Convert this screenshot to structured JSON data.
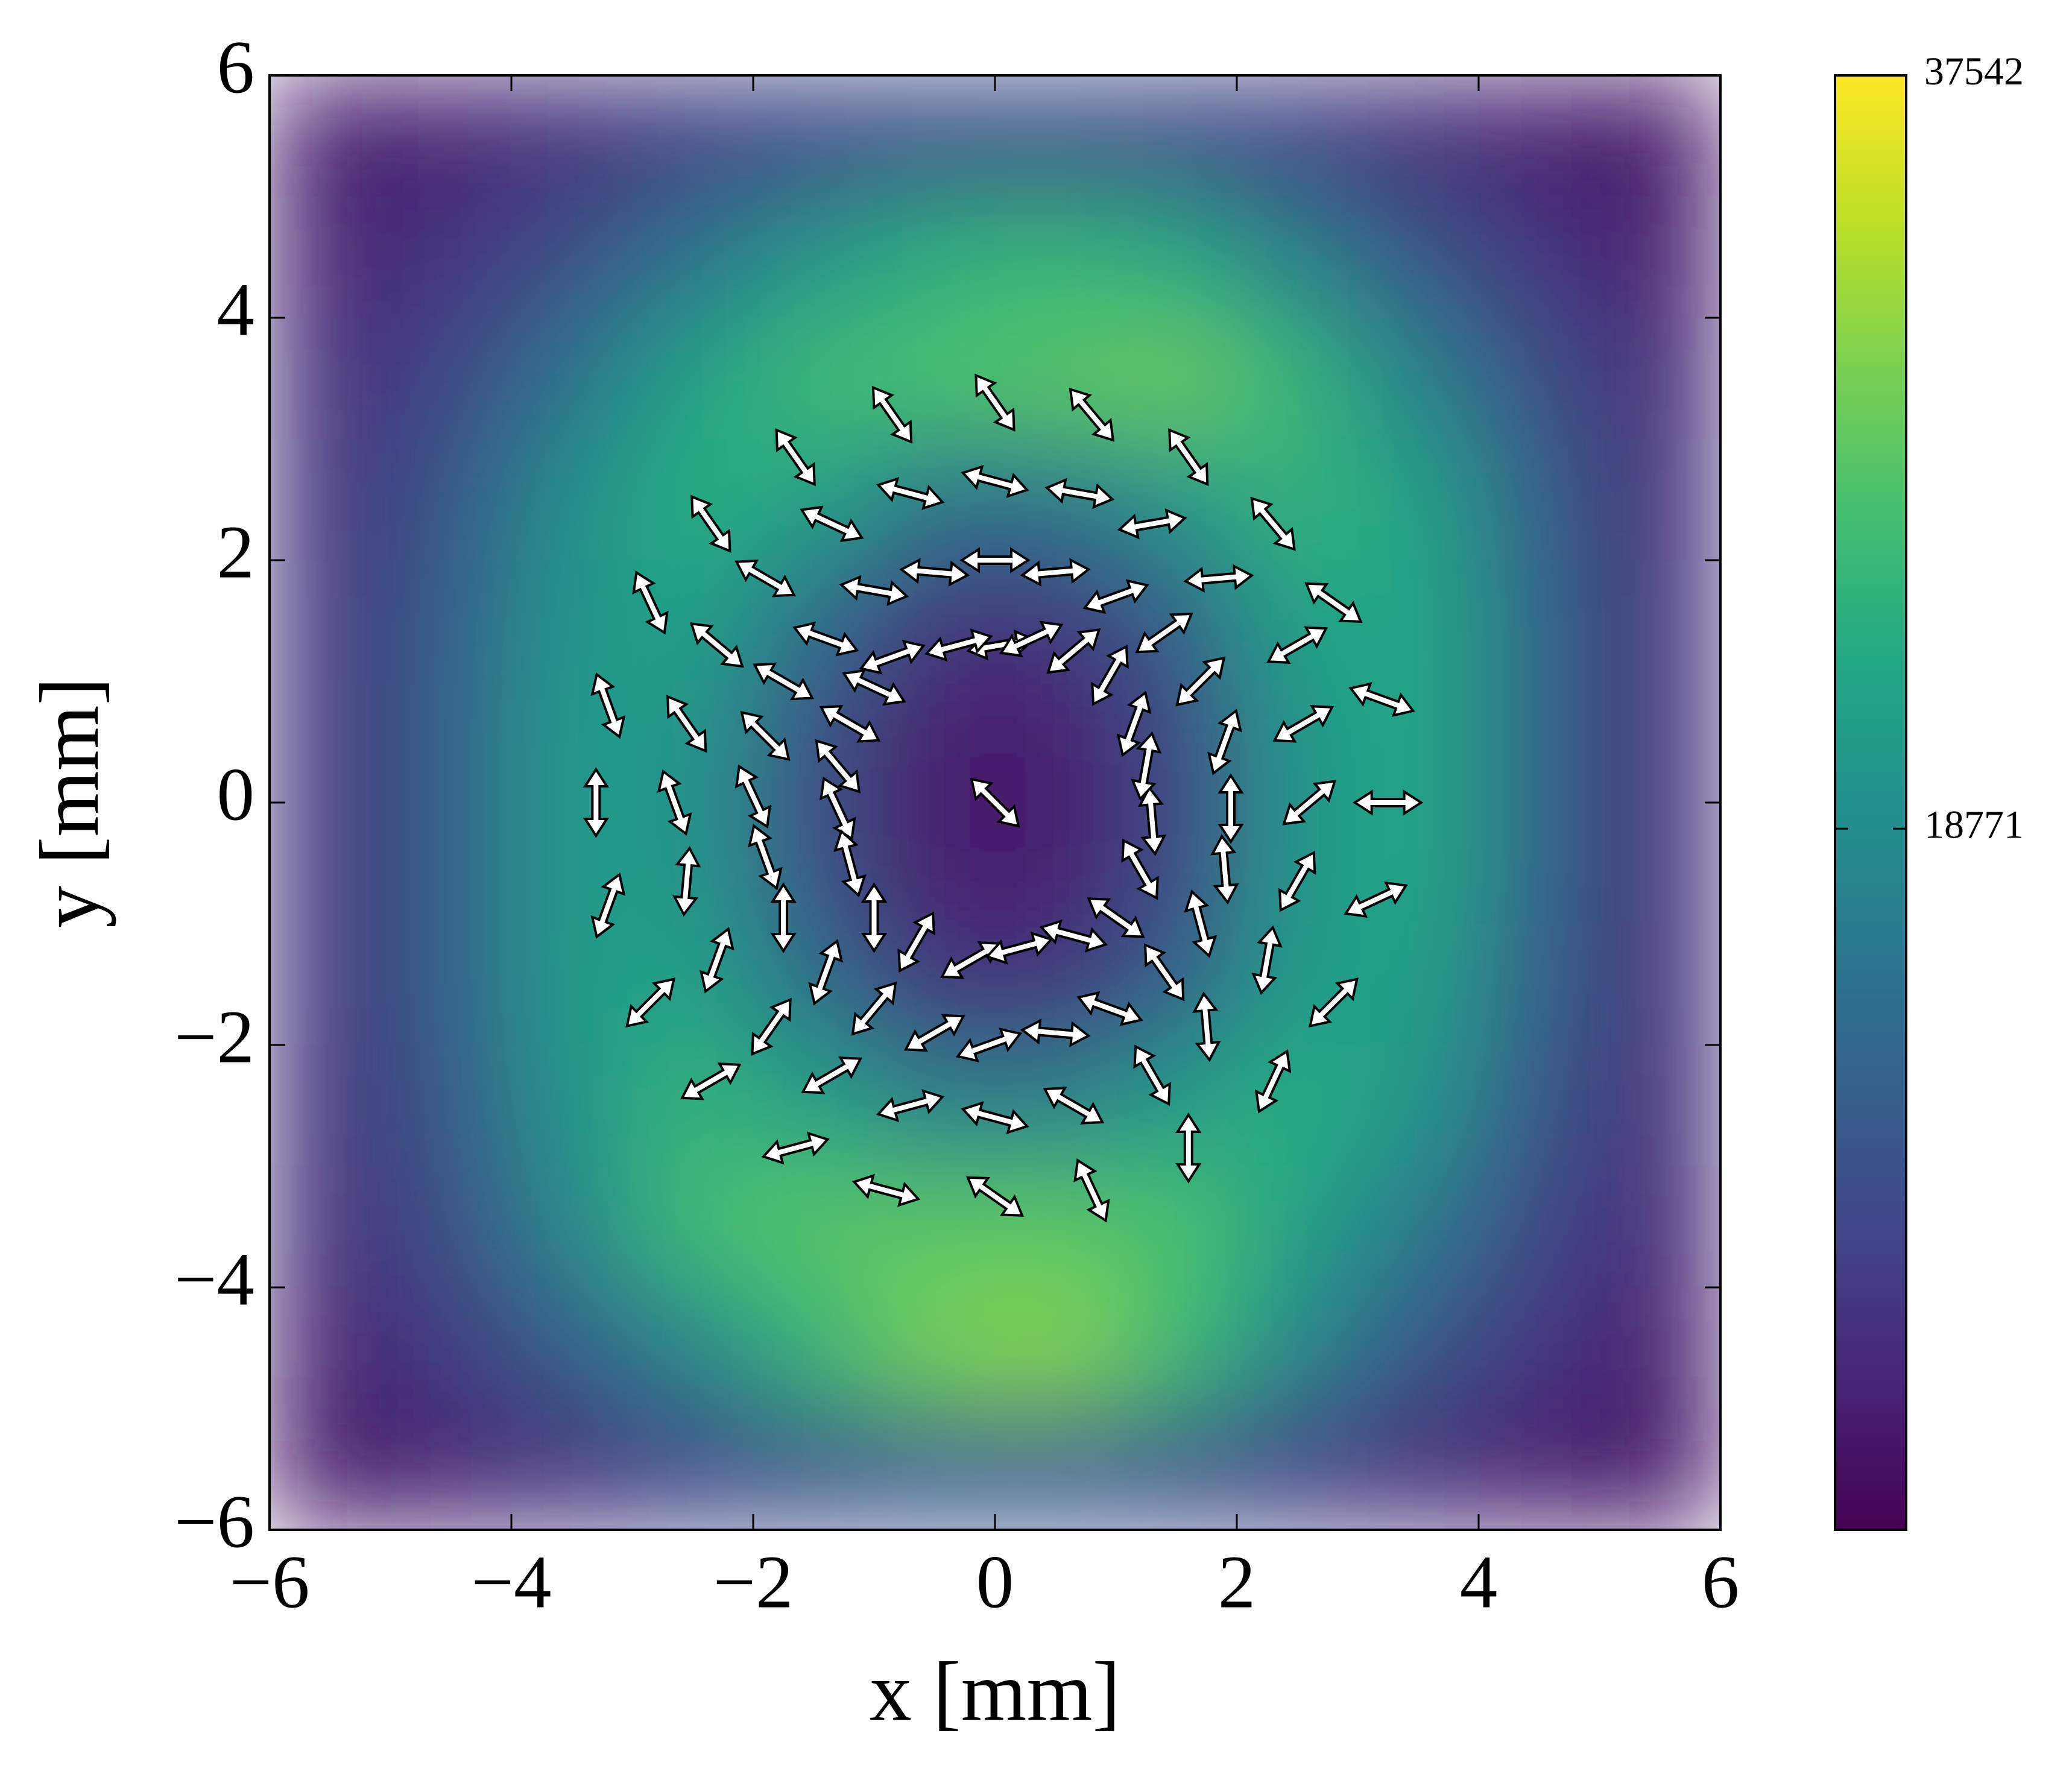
{
  "chart_data": {
    "type": "heatmap",
    "xlabel": "x [mm]",
    "ylabel": "y [mm]",
    "xlim": [
      -6,
      6
    ],
    "ylim": [
      -6,
      6
    ],
    "xticks": [
      {
        "value": -6,
        "label": "−6"
      },
      {
        "value": -4,
        "label": "−4"
      },
      {
        "value": -2,
        "label": "−2"
      },
      0,
      2,
      4,
      6
    ],
    "yticks": [
      {
        "value": -6,
        "label": "−6"
      },
      {
        "value": -4,
        "label": "−4"
      },
      {
        "value": -2,
        "label": "−2"
      },
      0,
      2,
      4,
      6
    ],
    "colormap": "viridis",
    "clim": [
      1300,
      37542
    ],
    "cticks": [
      18771,
      37542
    ],
    "heatmap": {
      "x": [
        -5.5,
        -4.5,
        -3.5,
        -2.5,
        -1.5,
        -0.5,
        0.5,
        1.5,
        2.5,
        3.5,
        4.5,
        5.5
      ],
      "y": [
        5.5,
        4.5,
        3.5,
        2.5,
        1.5,
        0.5,
        -0.5,
        -1.5,
        -2.5,
        -3.5,
        -4.5,
        -5.5
      ],
      "z": [
        [
          4000,
          5000,
          6500,
          8000,
          9000,
          9500,
          9500,
          9000,
          8000,
          6000,
          4500,
          3500
        ],
        [
          5000,
          7000,
          10000,
          15000,
          20000,
          24000,
          25000,
          23000,
          17000,
          11000,
          7000,
          4500
        ],
        [
          6000,
          9000,
          15000,
          22000,
          26000,
          27000,
          28000,
          29000,
          25000,
          17000,
          10000,
          5500
        ],
        [
          6500,
          11000,
          19000,
          24000,
          22000,
          15000,
          15000,
          20000,
          25000,
          22000,
          12000,
          6000
        ],
        [
          7000,
          12000,
          20000,
          22000,
          14000,
          7000,
          7000,
          12000,
          22000,
          23000,
          13000,
          6500
        ],
        [
          7000,
          12500,
          21000,
          20000,
          10000,
          4000,
          4000,
          9000,
          20000,
          23000,
          13000,
          6500
        ],
        [
          7000,
          12500,
          21000,
          20000,
          10000,
          4000,
          4000,
          9000,
          20000,
          23000,
          13000,
          6500
        ],
        [
          7000,
          12500,
          21000,
          22000,
          14000,
          7000,
          7000,
          12000,
          21000,
          22000,
          12500,
          6500
        ],
        [
          6500,
          11500,
          20000,
          25000,
          22000,
          17000,
          17000,
          21000,
          24000,
          20000,
          11000,
          6000
        ],
        [
          6000,
          10000,
          18000,
          26000,
          28000,
          28000,
          28000,
          27000,
          22000,
          16000,
          9000,
          5500
        ],
        [
          5000,
          7500,
          12000,
          18000,
          25000,
          30000,
          31000,
          26000,
          18000,
          11000,
          7000,
          4500
        ],
        [
          3500,
          5000,
          6500,
          8500,
          10000,
          11000,
          11000,
          10000,
          8000,
          6000,
          4500,
          3500
        ]
      ]
    },
    "arrow_color": "#ffffff",
    "arrows": {
      "x": [
        0,
        0.05,
        -0.3,
        -0.85,
        -1.0,
        -1.2,
        -1.3,
        -1.3,
        -1.2,
        -1.0,
        -0.65,
        -0.2,
        0.2,
        0.65,
        1.0,
        1.2,
        1.3,
        1.25,
        1.15,
        0.95,
        0.65,
        0.3,
        0,
        0.5,
        1.0,
        1.4,
        1.7,
        1.9,
        1.95,
        1.9,
        1.7,
        1.4,
        0.95,
        0.5,
        -0.05,
        -0.5,
        -1.0,
        -1.4,
        -1.75,
        -1.9,
        -2.0,
        -1.9,
        -1.75,
        -1.4,
        -1.0,
        -0.5,
        0,
        0.7,
        1.3,
        1.85,
        2.5,
        2.55,
        2.6,
        2.5,
        2.25,
        1.75,
        1.3,
        0.65,
        0,
        -0.7,
        -1.35,
        -1.85,
        -2.3,
        -2.55,
        -2.65,
        -2.55,
        -2.3,
        -1.9,
        -1.35,
        -0.7,
        0,
        0.8,
        1.6,
        2.3,
        2.8,
        3.2,
        3.25,
        3.15,
        2.8,
        2.3,
        1.6,
        0.8,
        0,
        -0.9,
        -1.65,
        -2.35,
        -2.85,
        -3.2,
        -3.3,
        -3.2,
        -2.85,
        -2.35,
        -1.65,
        -0.85
      ],
      "y": [
        0,
        1.3,
        1.3,
        1.2,
        0.95,
        0.65,
        0.3,
        -0.05,
        -0.5,
        -0.95,
        -1.15,
        -1.3,
        -1.2,
        -1.1,
        -0.95,
        -0.55,
        -0.15,
        0.3,
        0.65,
        1.05,
        1.25,
        1.35,
        2.0,
        1.9,
        1.7,
        1.4,
        1.0,
        0.5,
        -0.05,
        -0.55,
        -1.0,
        -1.4,
        -1.7,
        -1.9,
        -2.0,
        -1.9,
        -1.7,
        -1.4,
        -0.95,
        -0.45,
        0.05,
        0.55,
        1.0,
        1.35,
        1.75,
        1.9,
        2.65,
        2.55,
        2.3,
        1.85,
        1.3,
        0.65,
        0,
        -0.65,
        -1.3,
        -1.85,
        -2.25,
        -2.5,
        -2.6,
        -2.5,
        -2.25,
        -1.85,
        -1.3,
        -0.65,
        0,
        0.65,
        1.3,
        1.85,
        2.3,
        2.55,
        3.3,
        3.2,
        2.85,
        2.3,
        1.65,
        0.85,
        0,
        -0.8,
        -1.65,
        -2.3,
        -2.85,
        -3.2,
        -3.25,
        -3.2,
        -2.85,
        -2.3,
        -1.65,
        -0.85,
        0,
        0.8,
        1.65,
        2.3,
        2.85,
        3.2
      ],
      "angle": [
        135,
        10,
        15,
        20,
        155,
        150,
        130,
        115,
        105,
        90,
        60,
        30,
        15,
        165,
        145,
        120,
        95,
        80,
        70,
        60,
        40,
        25,
        0,
        5,
        20,
        35,
        45,
        70,
        90,
        95,
        105,
        125,
        160,
        175,
        20,
        30,
        50,
        70,
        90,
        110,
        115,
        135,
        150,
        160,
        170,
        175,
        165,
        170,
        10,
        5,
        30,
        30,
        40,
        60,
        80,
        95,
        120,
        150,
        165,
        15,
        30,
        55,
        70,
        85,
        110,
        125,
        140,
        150,
        155,
        165,
        125,
        130,
        125,
        130,
        145,
        160,
        0,
        25,
        45,
        65,
        90,
        115,
        145,
        165,
        15,
        30,
        45,
        70,
        90,
        110,
        115,
        125,
        125,
        125
      ]
    }
  }
}
